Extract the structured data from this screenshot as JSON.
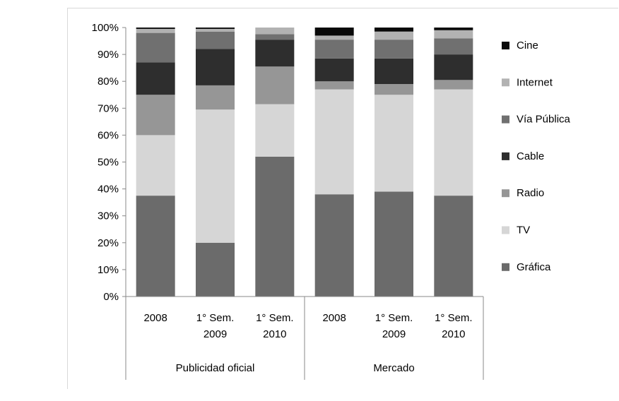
{
  "chart_data": {
    "type": "bar",
    "stacked": true,
    "groups": [
      {
        "label": "Publicidad oficial",
        "categories": [
          "2008",
          "1° Sem. 2009",
          "1° Sem. 2010"
        ]
      },
      {
        "label": "Mercado",
        "categories": [
          "2008",
          "1° Sem. 2009",
          "1° Sem. 2010"
        ]
      }
    ],
    "categories": [
      [
        "2008"
      ],
      [
        "1° Sem.",
        "2009"
      ],
      [
        "1° Sem.",
        "2010"
      ],
      [
        "2008"
      ],
      [
        "1° Sem.",
        "2009"
      ],
      [
        "1° Sem.",
        "2010"
      ]
    ],
    "series": [
      {
        "name": "Gráfica",
        "color": "#6b6b6b",
        "values": [
          37.5,
          20.0,
          52.0,
          38.0,
          39.0,
          37.5
        ]
      },
      {
        "name": "TV",
        "color": "#d6d6d6",
        "values": [
          22.5,
          49.5,
          19.5,
          39.0,
          36.0,
          39.5
        ]
      },
      {
        "name": "Radio",
        "color": "#969696",
        "values": [
          15.0,
          9.0,
          14.0,
          3.0,
          4.0,
          3.5
        ]
      },
      {
        "name": "Cable",
        "color": "#2e2e2e",
        "values": [
          12.0,
          13.5,
          10.0,
          8.5,
          9.5,
          9.5
        ]
      },
      {
        "name": "Vía Pública",
        "color": "#707070",
        "values": [
          11.0,
          6.5,
          2.0,
          7.0,
          7.0,
          6.0
        ]
      },
      {
        "name": "Internet",
        "color": "#b2b2b2",
        "values": [
          1.5,
          1.0,
          2.5,
          1.5,
          3.0,
          3.0
        ]
      },
      {
        "name": "Cine",
        "color": "#0a0a0a",
        "values": [
          0.5,
          0.5,
          0.0,
          3.0,
          1.5,
          1.0
        ]
      }
    ],
    "ylim": [
      0,
      100
    ],
    "yticks": [
      "0%",
      "10%",
      "20%",
      "30%",
      "40%",
      "50%",
      "60%",
      "70%",
      "80%",
      "90%",
      "100%"
    ],
    "legend_order": [
      "Cine",
      "Internet",
      "Vía Pública",
      "Cable",
      "Radio",
      "TV",
      "Gráfica"
    ],
    "legend_position": "right",
    "grid": false
  }
}
